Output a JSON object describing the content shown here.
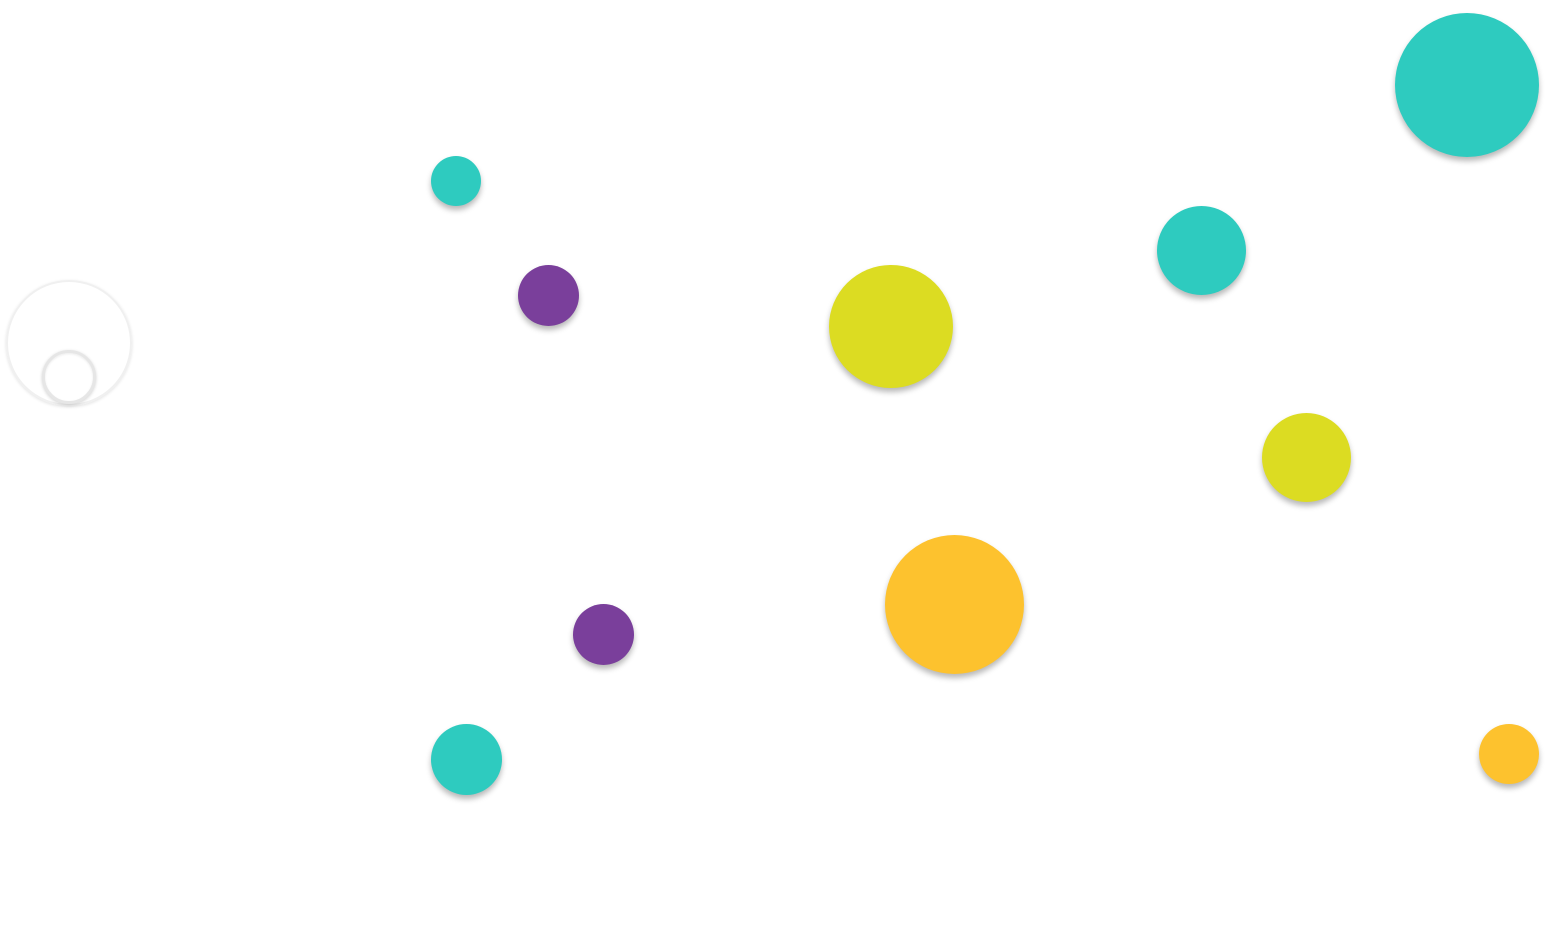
{
  "palette": {
    "teal": "#2ecbbf",
    "purple": "#7a3f9b",
    "lime": "#dcdc22",
    "amber": "#fdc22e",
    "background": "#ffffff",
    "player_ring": "#eeeeee"
  },
  "bubbles": [
    {
      "color": "teal"
    },
    {
      "color": "teal"
    },
    {
      "color": "teal"
    },
    {
      "color": "purple"
    },
    {
      "color": "lime"
    },
    {
      "color": "lime"
    },
    {
      "color": "amber"
    },
    {
      "color": "purple"
    },
    {
      "color": "teal"
    },
    {
      "color": "amber"
    }
  ],
  "player": {
    "icon": "ring-cursor-icon"
  }
}
